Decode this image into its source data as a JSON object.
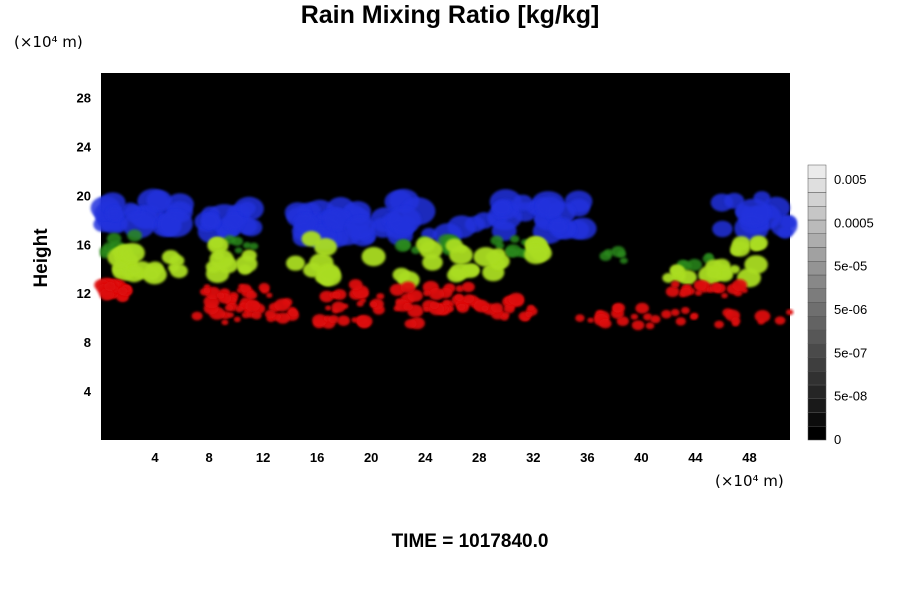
{
  "chart_data": {
    "type": "heatmap",
    "title": "Rain Mixing Ratio [kg/kg]",
    "ylabel": "Height",
    "x_unit": "(×10⁴ m)",
    "y_unit": "(×10⁴ m)",
    "xlim": [
      0,
      51
    ],
    "ylim": [
      0,
      30
    ],
    "x_ticks": [
      4,
      8,
      12,
      16,
      20,
      24,
      28,
      32,
      36,
      40,
      44,
      48
    ],
    "y_ticks": [
      4,
      8,
      12,
      16,
      20,
      24,
      28
    ],
    "colorbar": {
      "scale": "log",
      "tick_labels": [
        "0.005",
        "0.0005",
        "5e-05",
        "5e-06",
        "5e-07",
        "5e-08",
        "0"
      ],
      "levels": 20
    },
    "background_color": "#000000",
    "layers": [
      {
        "color": "#2233dd",
        "height_range": [
          16,
          20
        ]
      },
      {
        "color": "#aadd22",
        "height_range": [
          13,
          17
        ]
      },
      {
        "color": "#2a8a1e",
        "height_range": [
          13.5,
          17
        ]
      },
      {
        "color": "#dd1111",
        "height_range": [
          8.5,
          13
        ]
      }
    ]
  },
  "footer": {
    "label": "TIME = ",
    "value": "1017840.0"
  }
}
